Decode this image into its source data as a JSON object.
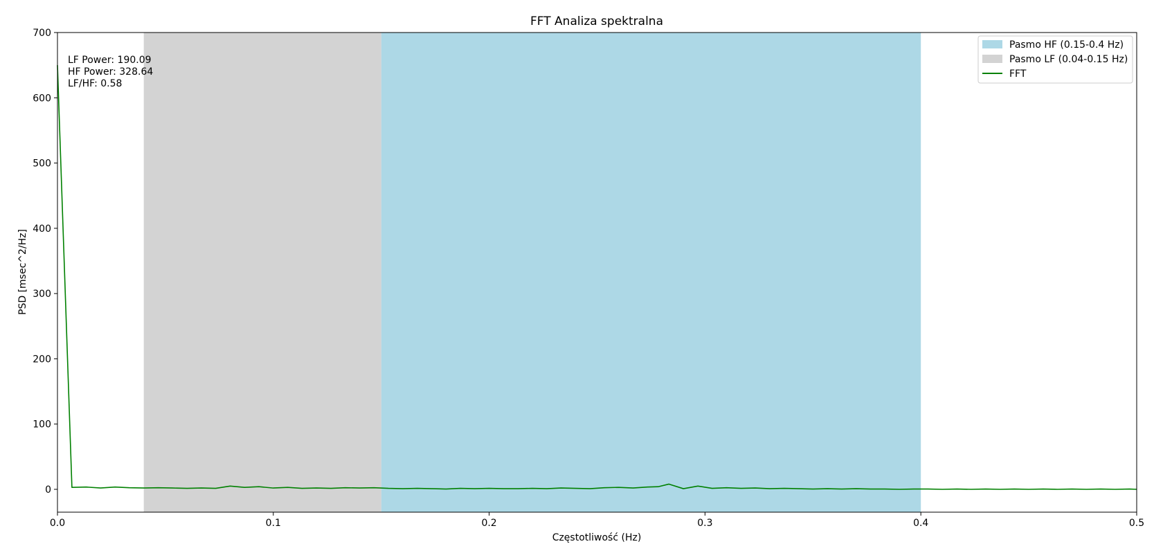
{
  "chart_data": {
    "type": "line",
    "title": "FFT Analiza spektralna",
    "xlabel": "Częstotliwość (Hz)",
    "ylabel": "PSD [msec^2/Hz]",
    "xlim": [
      0,
      0.5
    ],
    "ylim": [
      -35,
      700
    ],
    "x_ticks": [
      0.0,
      0.1,
      0.2,
      0.3,
      0.4,
      0.5
    ],
    "x_tick_labels": [
      "0.0",
      "0.1",
      "0.2",
      "0.3",
      "0.4",
      "0.5"
    ],
    "y_ticks": [
      0,
      100,
      200,
      300,
      400,
      500,
      600,
      700
    ],
    "y_tick_labels": [
      "0",
      "100",
      "200",
      "300",
      "400",
      "500",
      "600",
      "700"
    ],
    "grid": false,
    "legend_position": "top-right",
    "bands": [
      {
        "name": "Pasmo HF (0.15-0.4 Hz)",
        "x_start": 0.15,
        "x_end": 0.4,
        "color": "#add8e6"
      },
      {
        "name": "Pasmo LF (0.04-0.15 Hz)",
        "x_start": 0.04,
        "x_end": 0.15,
        "color": "#d3d3d3"
      }
    ],
    "series": [
      {
        "name": "FFT",
        "color": "#008000",
        "x": [
          0.0,
          0.0067,
          0.0133,
          0.02,
          0.0267,
          0.0333,
          0.04,
          0.0467,
          0.0533,
          0.06,
          0.0667,
          0.0733,
          0.08,
          0.0867,
          0.0933,
          0.1,
          0.1067,
          0.1133,
          0.12,
          0.1267,
          0.1333,
          0.14,
          0.1467,
          0.1533,
          0.16,
          0.1667,
          0.1733,
          0.18,
          0.1867,
          0.1933,
          0.2,
          0.2067,
          0.2133,
          0.22,
          0.2267,
          0.2333,
          0.24,
          0.2467,
          0.2533,
          0.26,
          0.2667,
          0.2733,
          0.2783,
          0.2833,
          0.29,
          0.2967,
          0.3033,
          0.31,
          0.3167,
          0.3233,
          0.33,
          0.3367,
          0.3433,
          0.35,
          0.3567,
          0.3633,
          0.37,
          0.3767,
          0.3833,
          0.39,
          0.3967,
          0.4033,
          0.41,
          0.4167,
          0.4233,
          0.43,
          0.4367,
          0.4433,
          0.45,
          0.4567,
          0.4633,
          0.47,
          0.4767,
          0.4833,
          0.49,
          0.4967,
          0.5
        ],
        "y": [
          650,
          3,
          3.5,
          2,
          3.5,
          2.5,
          2,
          2.5,
          2,
          1.5,
          2,
          1.5,
          5,
          3,
          4,
          2,
          3,
          1.5,
          2,
          1.5,
          2.5,
          2,
          2.5,
          1.5,
          1,
          1.5,
          1,
          0.5,
          1.5,
          1,
          1.5,
          1,
          1,
          1.5,
          1,
          2,
          1.5,
          1,
          2.5,
          3,
          2,
          3.5,
          4,
          8,
          1,
          5,
          1.5,
          2.5,
          1.5,
          2,
          1,
          1.5,
          1,
          0.5,
          1,
          0.5,
          1,
          0.5,
          0.5,
          0,
          0.5,
          0.5,
          0,
          0.5,
          0,
          0.5,
          0,
          0.5,
          0,
          0.5,
          0,
          0.5,
          0,
          0.5,
          0,
          0.5,
          0
        ]
      }
    ],
    "annotations": [
      "LF Power: 190.09",
      "HF Power: 328.64",
      "LF/HF: 0.58"
    ]
  }
}
